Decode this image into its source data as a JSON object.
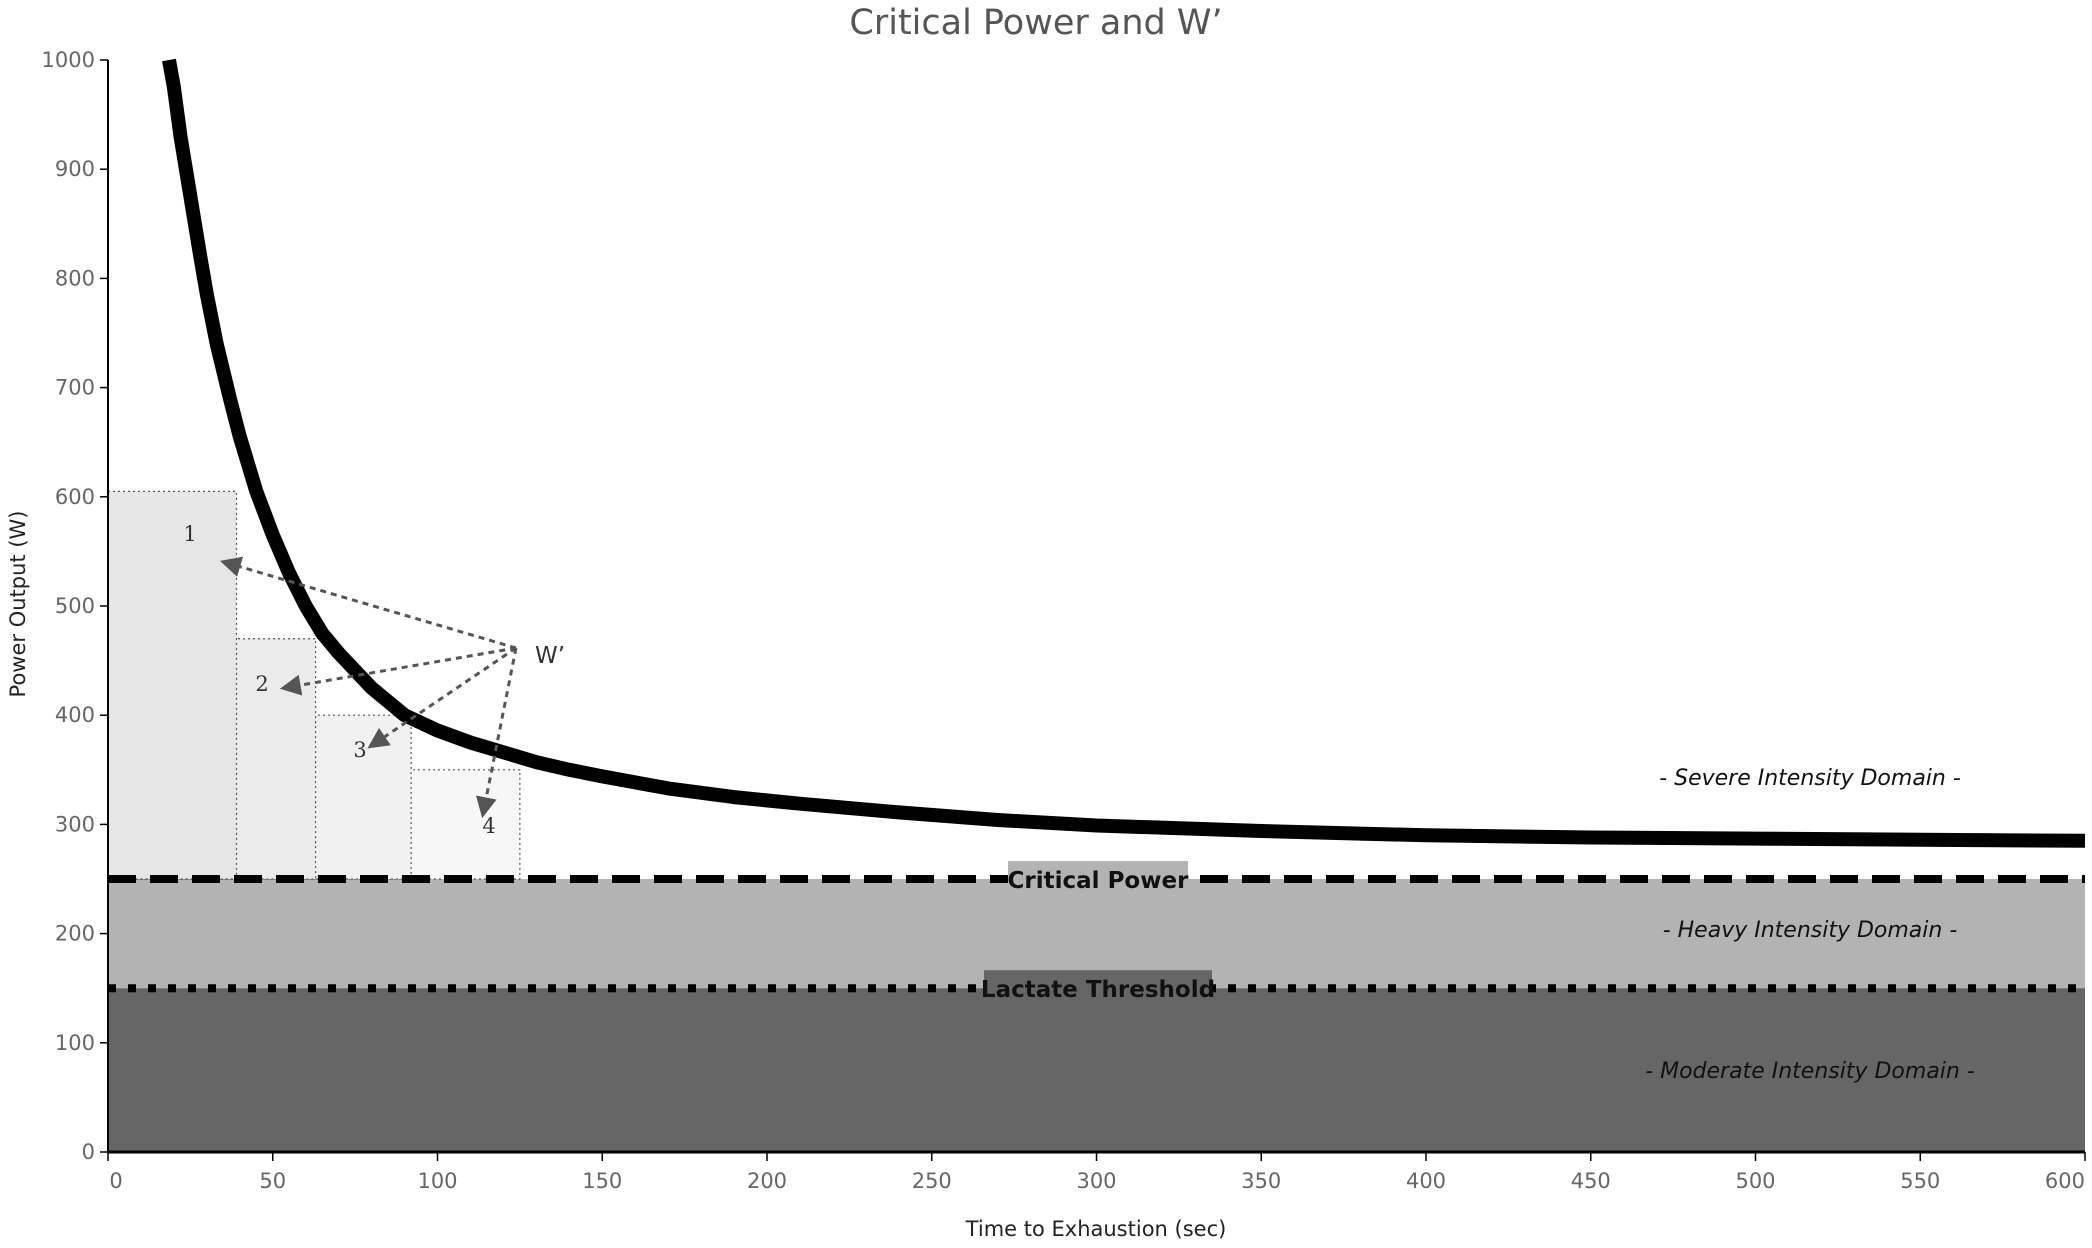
{
  "chart_data": {
    "type": "line",
    "title": "Critical Power and W’",
    "xlabel": "Time to Exhaustion (sec)",
    "ylabel": "Power Output (W)",
    "xlim": [
      0,
      600
    ],
    "ylim": [
      0,
      1000
    ],
    "x_ticks": [
      "0",
      "50",
      "100",
      "150",
      "200",
      "250",
      "300",
      "350",
      "400",
      "450",
      "500",
      "550",
      "600"
    ],
    "y_ticks": [
      "0",
      "100",
      "200",
      "300",
      "400",
      "500",
      "600",
      "700",
      "800",
      "900",
      "1000"
    ],
    "grid": false,
    "series": [
      {
        "x": [
          18.5,
          20,
          22,
          25,
          28,
          30,
          33,
          37,
          40,
          45,
          50,
          55,
          60,
          65,
          70,
          80,
          90,
          100,
          110,
          120,
          130,
          140,
          150,
          170,
          190,
          210,
          240,
          270,
          300,
          350,
          400,
          450,
          500,
          550,
          600
        ],
        "y": [
          1000,
          975,
          930,
          875,
          820,
          785,
          740,
          690,
          655,
          605,
          565,
          530,
          500,
          475,
          457,
          425,
          400,
          386,
          375,
          366,
          357,
          350,
          344,
          333,
          325,
          319,
          311,
          304,
          299,
          294,
          290,
          288,
          287,
          286,
          285
        ]
      }
    ],
    "reference_lines": [
      {
        "label": "Critical Power",
        "y": 250,
        "style": "dashed"
      },
      {
        "label": "Lactate Threshold",
        "y": 150,
        "style": "dotted"
      }
    ],
    "regions": [
      {
        "label": "- Severe Intensity Domain -",
        "y_from": 250,
        "y_to": 1000,
        "color": "#ffffff"
      },
      {
        "label": "- Heavy Intensity Domain -",
        "y_from": 150,
        "y_to": 250,
        "color": "#b3b3b3"
      },
      {
        "label": "- Moderate Intensity Domain -",
        "y_from": 0,
        "y_to": 150,
        "color": "#666666"
      }
    ],
    "w_prime_rectangles": [
      {
        "label": "1",
        "x_to": 39,
        "y_top": 605
      },
      {
        "label": "2",
        "x_to": 63,
        "y_top": 470
      },
      {
        "label": "3",
        "x_to": 92,
        "y_top": 400
      },
      {
        "label": "4",
        "x_to": 125,
        "y_top": 350
      }
    ],
    "annotation": "W’",
    "colors": {
      "curve": "#000000",
      "heavy": "#b3b3b3",
      "moderate": "#666666",
      "critical_power_label_bg": "#b3b3b3",
      "lactate_label_bg": "#666666",
      "arrow": "#555555"
    }
  }
}
